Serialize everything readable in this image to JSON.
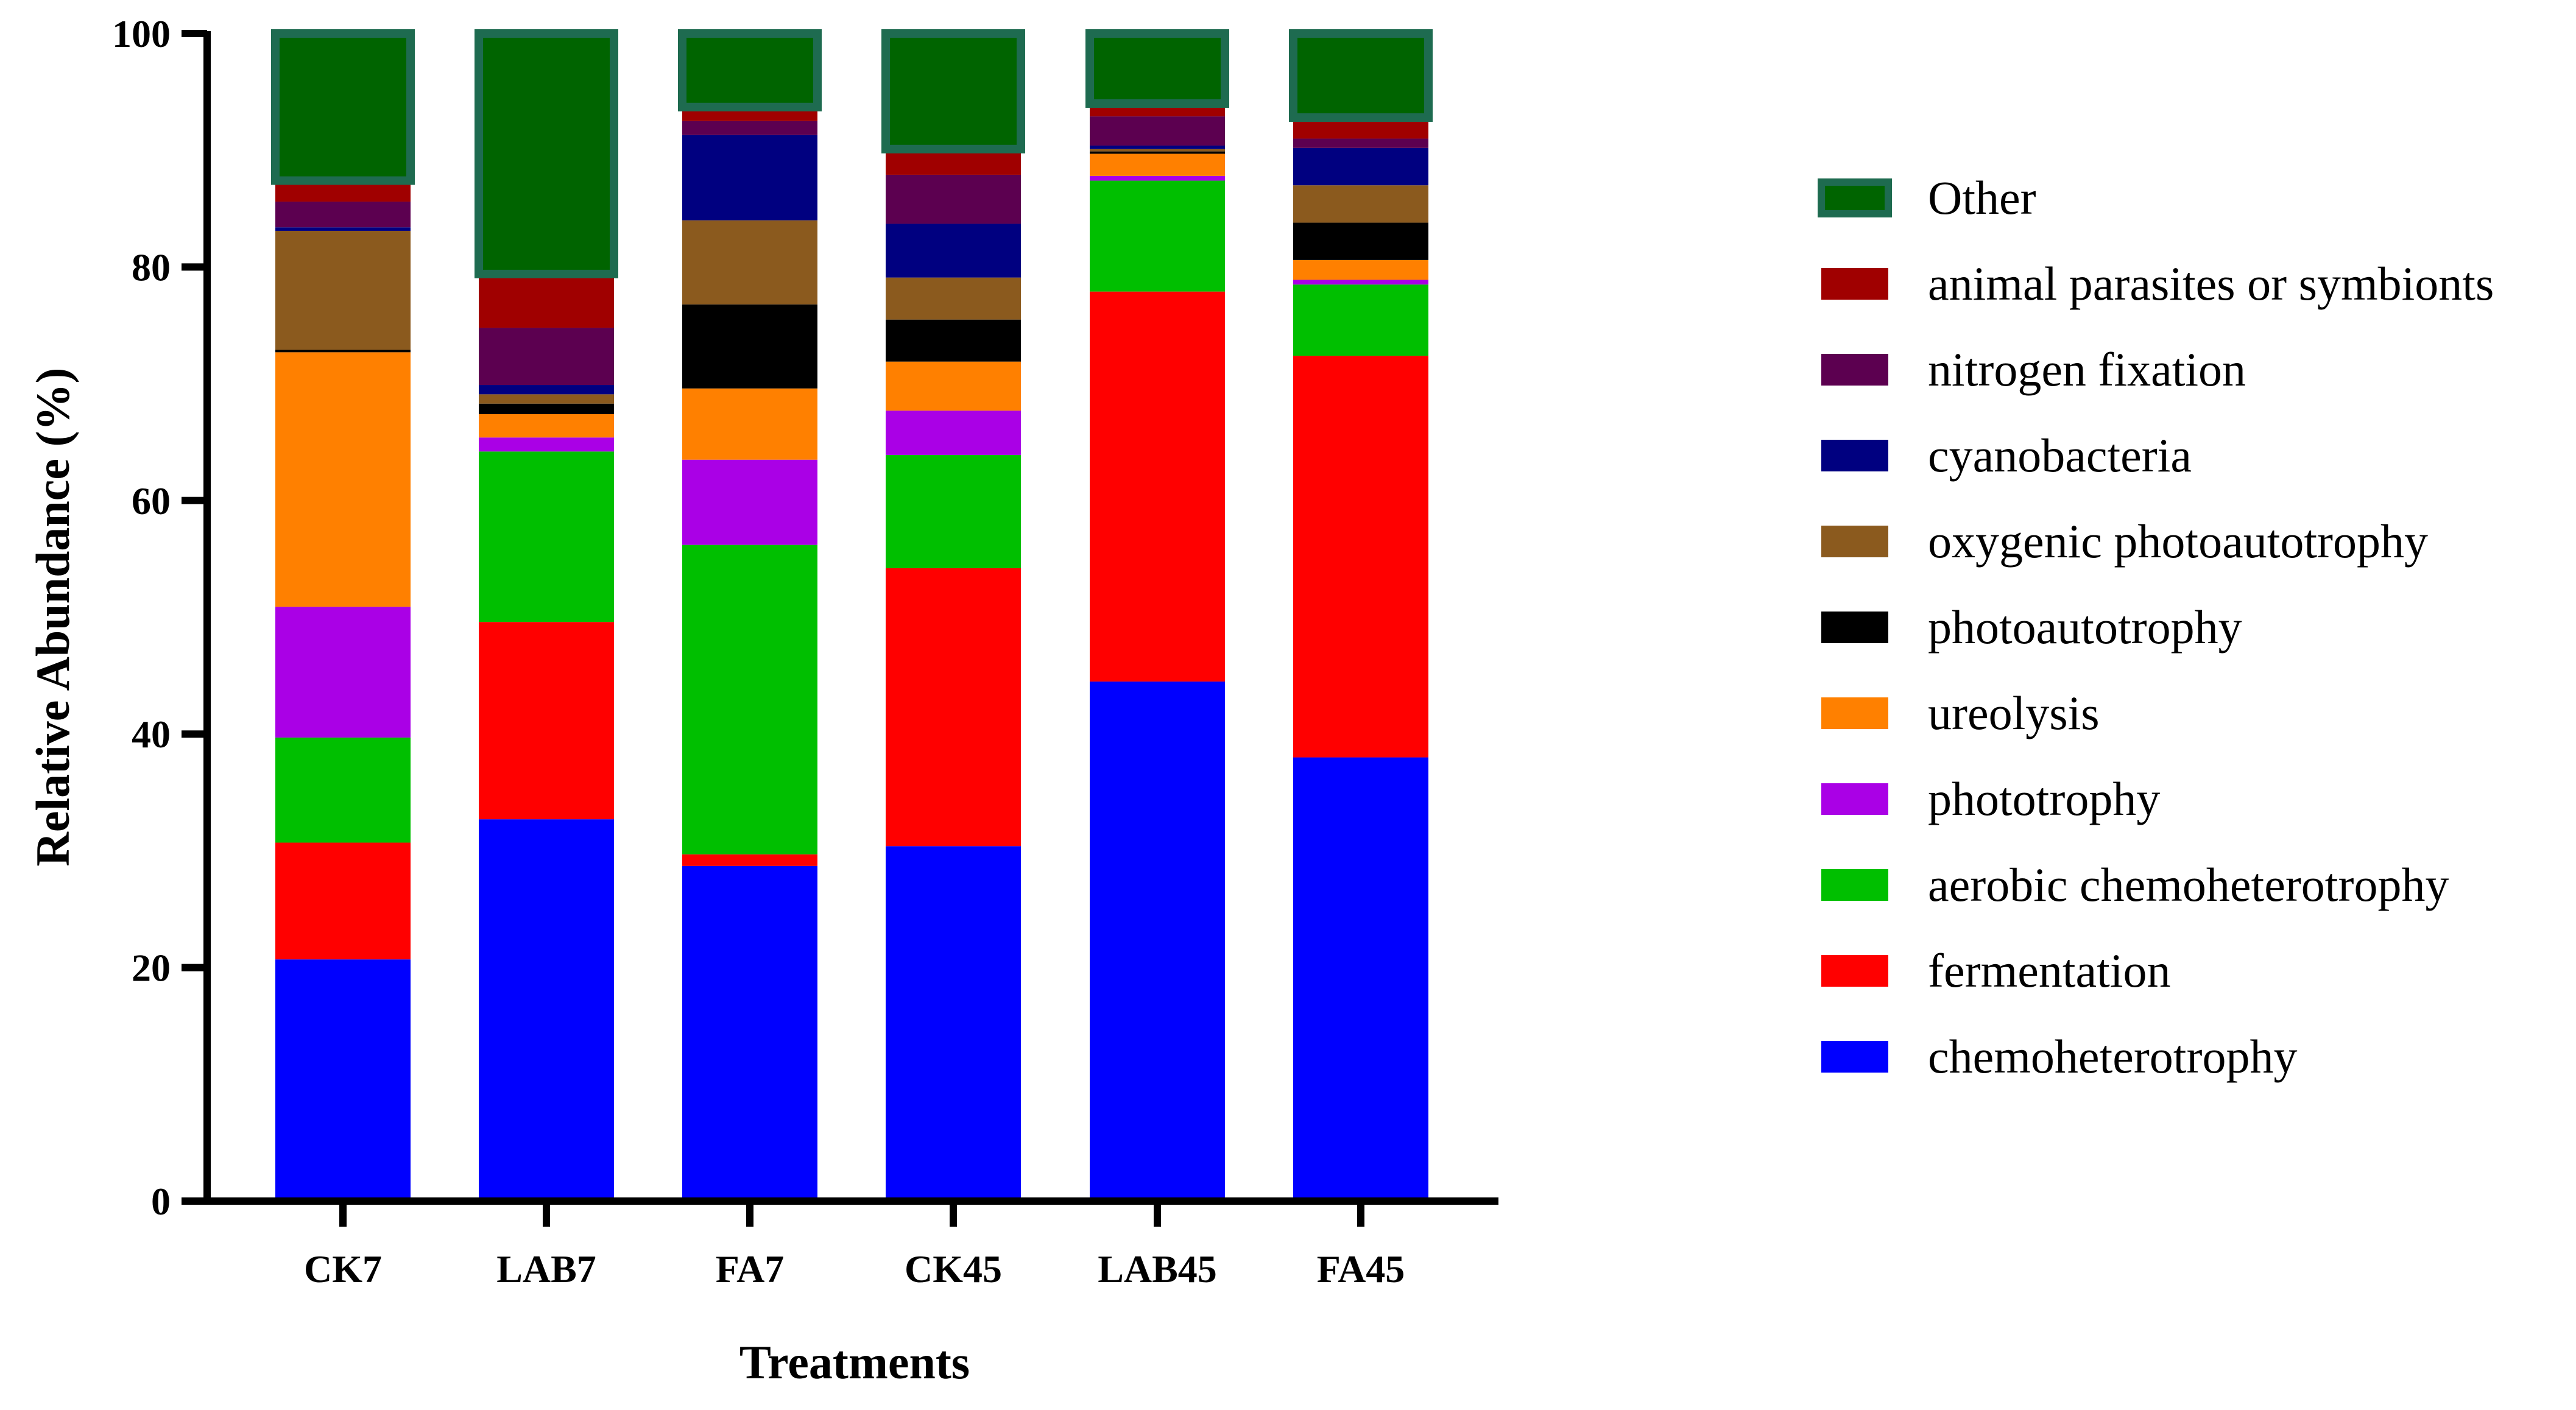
{
  "chart_data": {
    "type": "bar",
    "stacked": true,
    "title": "",
    "xlabel": "Treatments",
    "ylabel": "Relative Abundance (%)",
    "ylim": [
      0,
      100
    ],
    "yticks": [
      0,
      20,
      40,
      60,
      80,
      100
    ],
    "categories": [
      "CK7",
      "LAB7",
      "FA7",
      "CK45",
      "LAB45",
      "FA45"
    ],
    "legend_position": "right",
    "series": [
      {
        "name": "chemoheterotrophy",
        "color": "#0000FF",
        "values": [
          20.7,
          32.7,
          28.7,
          30.4,
          44.5,
          38.0
        ]
      },
      {
        "name": "fermentation",
        "color": "#FF0000",
        "values": [
          10.0,
          16.9,
          1.0,
          23.8,
          33.4,
          34.4
        ]
      },
      {
        "name": "aerobic chemoheterotrophy",
        "color": "#00BF00",
        "values": [
          9.0,
          14.6,
          26.5,
          9.7,
          9.5,
          6.1
        ]
      },
      {
        "name": "phototrophy",
        "color": "#AA00E6",
        "values": [
          11.2,
          1.2,
          7.3,
          3.8,
          0.4,
          0.4
        ]
      },
      {
        "name": "ureolysis",
        "color": "#FF8000",
        "values": [
          21.8,
          2.0,
          6.1,
          4.2,
          1.9,
          1.7
        ]
      },
      {
        "name": "photoautotrophy",
        "color": "#000000",
        "values": [
          0.2,
          0.9,
          7.2,
          3.6,
          0.2,
          3.2
        ]
      },
      {
        "name": "oxygenic photoautotrophy",
        "color": "#8B5A1E",
        "values": [
          10.2,
          0.8,
          7.2,
          3.6,
          0.2,
          3.2
        ]
      },
      {
        "name": "cyanobacteria",
        "color": "#000080",
        "values": [
          0.3,
          0.8,
          7.3,
          4.6,
          0.3,
          3.2
        ]
      },
      {
        "name": "nitrogen fixation",
        "color": "#5C0050",
        "values": [
          2.2,
          4.9,
          1.2,
          4.2,
          2.5,
          0.8
        ]
      },
      {
        "name": "animal parasites or symbionts",
        "color": "#A00000",
        "values": [
          1.8,
          4.6,
          1.2,
          2.2,
          1.1,
          1.8
        ]
      },
      {
        "name": "Other",
        "color": "#006400",
        "values": [
          12.6,
          20.6,
          6.3,
          9.9,
          6.0,
          8.0
        ]
      }
    ]
  }
}
